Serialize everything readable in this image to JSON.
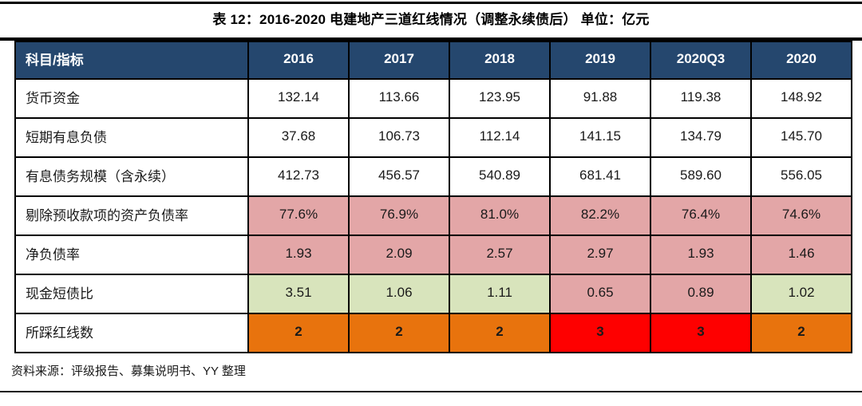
{
  "title": "表 12：2016-2020 电建地产三道红线情况（调整永续债后）  单位：亿元",
  "source_note": "资料来源：评级报告、募集说明书、YY 整理",
  "colors": {
    "header_bg": "#25476e",
    "header_text": "#ffffff",
    "white": "#ffffff",
    "pink": "#e3a6a7",
    "green": "#d8e4bc",
    "orange": "#e8730d",
    "red": "#fe0000",
    "border": "#000000"
  },
  "chart_data": {
    "type": "table",
    "title": "表 12：2016-2020 电建地产三道红线情况（调整永续债后）  单位：亿元",
    "unit": "亿元",
    "columns": [
      "科目/指标",
      "2016",
      "2017",
      "2018",
      "2019",
      "2020Q3",
      "2020"
    ],
    "rows": [
      {
        "label": "货币资金",
        "values": [
          "132.14",
          "113.66",
          "123.95",
          "91.88",
          "119.38",
          "148.92"
        ],
        "bg": [
          "white",
          "white",
          "white",
          "white",
          "white",
          "white"
        ],
        "bold": false
      },
      {
        "label": "短期有息负债",
        "values": [
          "37.68",
          "106.73",
          "112.14",
          "141.15",
          "134.79",
          "145.70"
        ],
        "bg": [
          "white",
          "white",
          "white",
          "white",
          "white",
          "white"
        ],
        "bold": false
      },
      {
        "label": "有息债务规模（含永续）",
        "values": [
          "412.73",
          "456.57",
          "540.89",
          "681.41",
          "589.60",
          "556.05"
        ],
        "bg": [
          "white",
          "white",
          "white",
          "white",
          "white",
          "white"
        ],
        "bold": false
      },
      {
        "label": "剔除预收款项的资产负债率",
        "values": [
          "77.6%",
          "76.9%",
          "81.0%",
          "82.2%",
          "76.4%",
          "74.6%"
        ],
        "bg": [
          "pink",
          "pink",
          "pink",
          "pink",
          "pink",
          "pink"
        ],
        "bold": false
      },
      {
        "label": "净负债率",
        "values": [
          "1.93",
          "2.09",
          "2.57",
          "2.97",
          "1.93",
          "1.46"
        ],
        "bg": [
          "pink",
          "pink",
          "pink",
          "pink",
          "pink",
          "pink"
        ],
        "bold": false
      },
      {
        "label": "现金短债比",
        "values": [
          "3.51",
          "1.06",
          "1.11",
          "0.65",
          "0.89",
          "1.02"
        ],
        "bg": [
          "green",
          "green",
          "green",
          "pink",
          "pink",
          "green"
        ],
        "bold": false
      },
      {
        "label": "所踩红线数",
        "values": [
          "2",
          "2",
          "2",
          "3",
          "3",
          "2"
        ],
        "bg": [
          "orange",
          "orange",
          "orange",
          "red",
          "red",
          "orange"
        ],
        "bold": true
      }
    ]
  }
}
